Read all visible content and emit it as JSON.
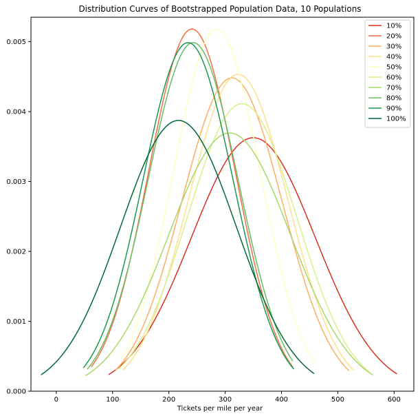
{
  "chart_data": {
    "type": "line",
    "title": "Distribution Curves of Bootstrapped Population Data, 10 Populations",
    "xlabel": "Tickets per mile per year",
    "ylabel": "",
    "xlim": [
      -45,
      635
    ],
    "ylim": [
      0,
      0.00535
    ],
    "xticks": [
      0,
      100,
      200,
      300,
      400,
      500,
      600
    ],
    "xtick_labels": [
      "0",
      "100",
      "200",
      "300",
      "400",
      "500",
      "600"
    ],
    "yticks": [
      0,
      0.001,
      0.002,
      0.003,
      0.004,
      0.005
    ],
    "ytick_labels": [
      "0.000",
      "0.001",
      "0.002",
      "0.003",
      "0.004",
      "0.005"
    ],
    "grid": false,
    "legend_position": "top-right",
    "series": [
      {
        "name": "10%",
        "color": "#d7301f",
        "mean": 350,
        "sd": 110,
        "x_range": [
          93,
          605
        ]
      },
      {
        "name": "20%",
        "color": "#f46d43",
        "mean": 241,
        "sd": 77,
        "x_range": [
          62,
          420
        ]
      },
      {
        "name": "30%",
        "color": "#fdae61",
        "mean": 312,
        "sd": 89,
        "x_range": [
          105,
          520
        ]
      },
      {
        "name": "40%",
        "color": "#fee08b",
        "mean": 323,
        "sd": 88,
        "x_range": [
          118,
          528
        ]
      },
      {
        "name": "50%",
        "color": "#ffffbf",
        "mean": 285,
        "sd": 77,
        "x_range": [
          115,
          462
        ]
      },
      {
        "name": "60%",
        "color": "#d9ef8b",
        "mean": 330,
        "sd": 97,
        "x_range": [
          110,
          558
        ]
      },
      {
        "name": "70%",
        "color": "#a6d96a",
        "mean": 308,
        "sd": 108,
        "x_range": [
          52,
          562
        ]
      },
      {
        "name": "80%",
        "color": "#66bd63",
        "mean": 243,
        "sd": 80,
        "x_range": [
          55,
          420
        ]
      },
      {
        "name": "90%",
        "color": "#1a9850",
        "mean": 234,
        "sd": 80,
        "x_range": [
          48,
          422
        ]
      },
      {
        "name": "100%",
        "color": "#006837",
        "mean": 217,
        "sd": 103,
        "x_range": [
          -27,
          458
        ]
      }
    ]
  }
}
